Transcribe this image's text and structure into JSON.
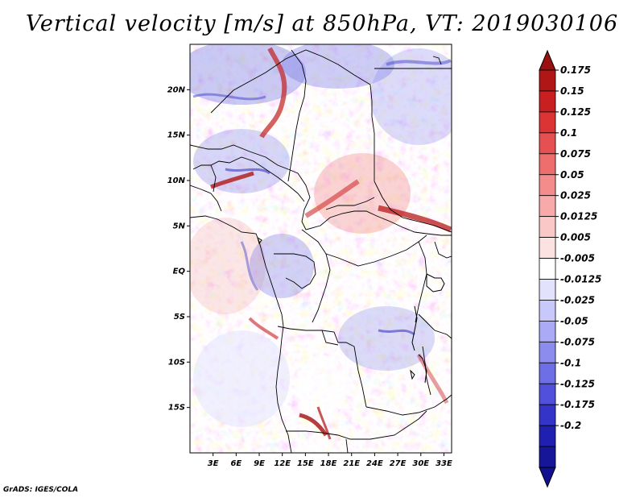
{
  "title": "Vertical velocity [m/s] at 850hPa, VT: 2019030106",
  "credit": "GrADS: IGES/COLA",
  "map": {
    "lat_labels": [
      "20N",
      "15N",
      "10N",
      "5N",
      "EQ",
      "5S",
      "10S",
      "15S"
    ],
    "lat_values": [
      20,
      15,
      10,
      5,
      0,
      -5,
      -10,
      -15
    ],
    "lon_labels": [
      "3E",
      "6E",
      "9E",
      "12E",
      "15E",
      "18E",
      "21E",
      "24E",
      "27E",
      "30E",
      "33E"
    ],
    "lon_values": [
      3,
      6,
      9,
      12,
      15,
      18,
      21,
      24,
      27,
      30,
      33
    ],
    "lon_range": [
      0,
      34
    ],
    "lat_range": [
      -20,
      25
    ],
    "field_units": "m/s"
  },
  "colorbar": {
    "levels": [
      "0.175",
      "0.15",
      "0.125",
      "0.1",
      "0.075",
      "0.05",
      "0.025",
      "0.0125",
      "0.005",
      "-0.005",
      "-0.0125",
      "-0.025",
      "-0.05",
      "-0.075",
      "-0.1",
      "-0.125",
      "-0.175",
      "-0.2"
    ],
    "colors": [
      "#b01616",
      "#c82020",
      "#dc3434",
      "#e65050",
      "#ee6e6e",
      "#f48c8c",
      "#f8aaaa",
      "#fbc8c8",
      "#fde2e2",
      "#ffffff",
      "#e2e2fd",
      "#c8c8fb",
      "#aaaaf6",
      "#8c8cee",
      "#6e6ee6",
      "#5050dc",
      "#3434c8",
      "#2020b0",
      "#161698"
    ],
    "top_color": "#9a1010",
    "bottom_color": "#101090"
  }
}
